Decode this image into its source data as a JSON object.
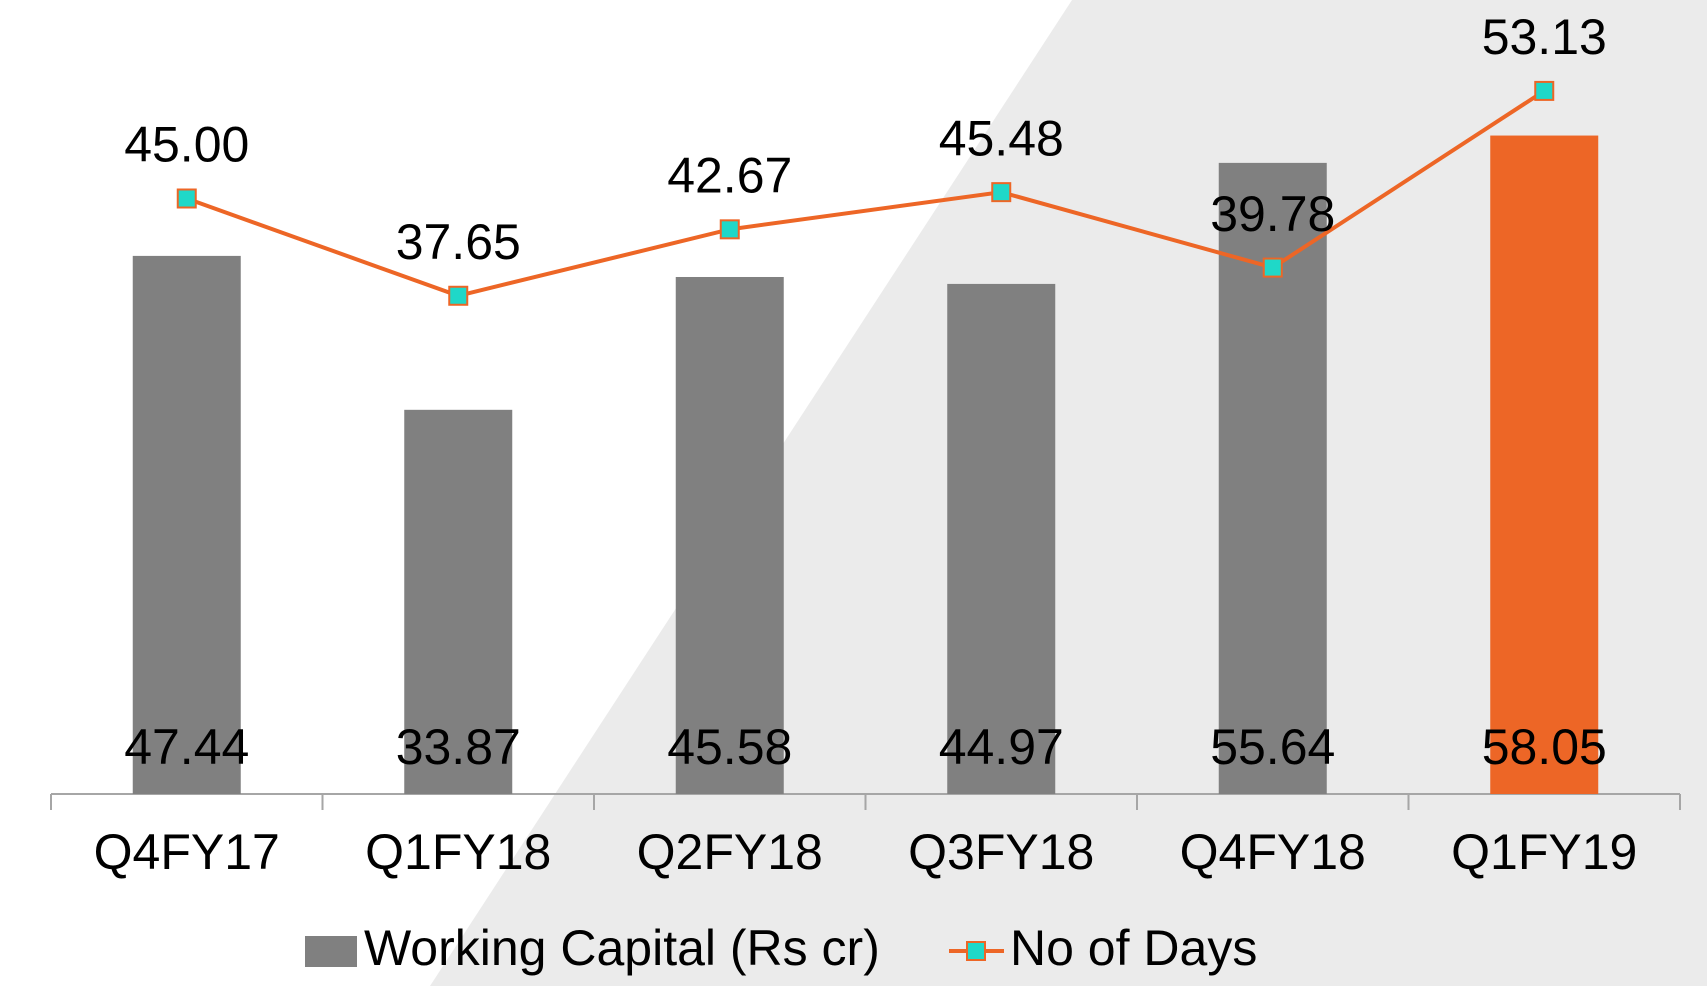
{
  "chart_data": {
    "type": "bar_line",
    "categories": [
      "Q4FY17",
      "Q1FY18",
      "Q2FY18",
      "Q3FY18",
      "Q4FY18",
      "Q1FY19"
    ],
    "series": [
      {
        "name": "Working Capital (Rs cr)",
        "type": "bar",
        "color": "#808080",
        "colors": [
          "#808080",
          "#808080",
          "#808080",
          "#808080",
          "#808080",
          "#ED6626"
        ],
        "values": [
          47.44,
          33.87,
          45.58,
          44.97,
          55.64,
          58.05
        ]
      },
      {
        "name": "No of Days",
        "type": "line",
        "axis": "y2",
        "color": "#ED6626",
        "marker_color": "#1FD8C8",
        "values": [
          45.0,
          37.65,
          42.67,
          45.48,
          39.78,
          53.13
        ],
        "value_labels": [
          "45.00",
          "37.65",
          "42.67",
          "45.48",
          "39.78",
          "53.13"
        ]
      }
    ],
    "ylim": [
      0,
      70
    ],
    "y2lim": [
      0,
      60
    ],
    "legend": "bottom"
  }
}
